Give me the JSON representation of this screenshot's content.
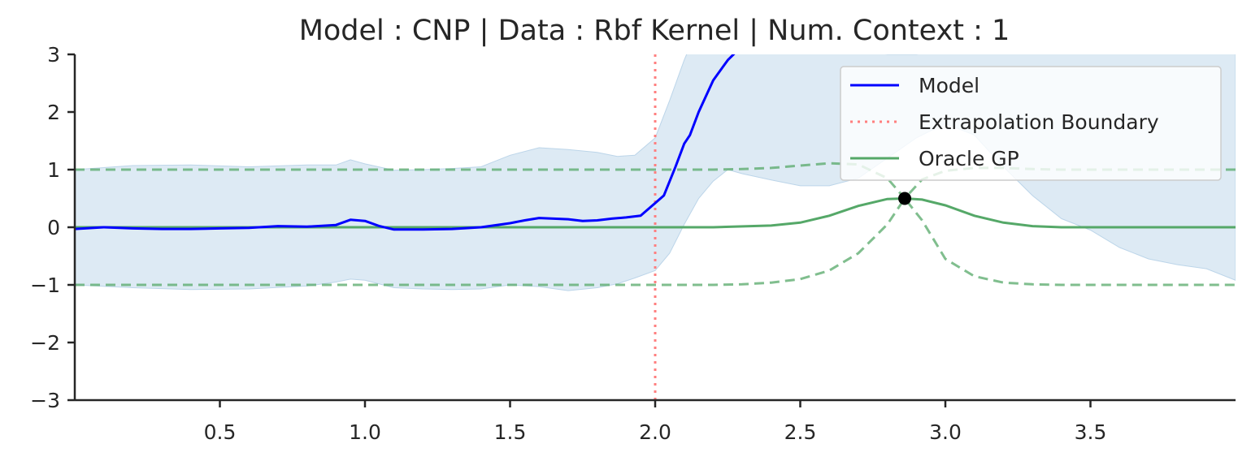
{
  "chart_data": {
    "type": "line",
    "title": "Model : CNP | Data : Rbf Kernel | Num. Context : 1",
    "xlabel": "",
    "ylabel": "",
    "xlim": [
      0.0,
      4.0
    ],
    "ylim": [
      -3,
      3
    ],
    "x_ticks": [
      0.5,
      1.0,
      1.5,
      2.0,
      2.5,
      3.0,
      3.5
    ],
    "x_tick_labels": [
      "0.5",
      "1.0",
      "1.5",
      "2.0",
      "2.5",
      "3.0",
      "3.5"
    ],
    "y_ticks": [
      3,
      2,
      1,
      0,
      -1,
      -2,
      -3
    ],
    "y_tick_labels": [
      "3",
      "2",
      "1",
      "0",
      "−1",
      "−2",
      "−3"
    ],
    "grid": false,
    "legend_position": "top-right",
    "extrapolation_boundary_x": 2.0,
    "context_points": [
      {
        "x": 2.86,
        "y": 0.5
      }
    ],
    "series": [
      {
        "name": "Model",
        "color": "#0000ff",
        "style": "solid",
        "x": [
          0.0,
          0.1,
          0.2,
          0.3,
          0.4,
          0.5,
          0.6,
          0.7,
          0.8,
          0.9,
          0.95,
          1.0,
          1.05,
          1.1,
          1.2,
          1.3,
          1.4,
          1.5,
          1.55,
          1.6,
          1.7,
          1.75,
          1.8,
          1.85,
          1.9,
          1.95,
          2.0,
          2.03,
          2.07,
          2.1,
          2.12,
          2.15,
          2.2,
          2.25,
          2.3
        ],
        "y": [
          -0.03,
          0.0,
          -0.02,
          -0.03,
          -0.03,
          -0.02,
          -0.01,
          0.02,
          0.01,
          0.04,
          0.13,
          0.11,
          0.02,
          -0.04,
          -0.04,
          -0.03,
          0.0,
          0.07,
          0.12,
          0.16,
          0.14,
          0.11,
          0.12,
          0.15,
          0.17,
          0.2,
          0.42,
          0.55,
          1.05,
          1.45,
          1.6,
          2.0,
          2.55,
          2.9,
          3.15
        ]
      },
      {
        "name": "Model uncertainty band",
        "color": "#bcd5e9",
        "style": "band",
        "x": [
          0.0,
          0.2,
          0.4,
          0.6,
          0.8,
          0.9,
          0.95,
          1.0,
          1.1,
          1.2,
          1.3,
          1.4,
          1.5,
          1.6,
          1.7,
          1.8,
          1.87,
          1.93,
          2.0,
          2.05,
          2.1,
          2.15,
          2.2,
          2.25,
          2.3,
          2.4,
          2.5,
          2.6,
          2.7,
          2.8,
          2.9,
          3.0,
          3.1,
          3.2,
          3.3,
          3.4,
          3.5,
          3.6,
          3.7,
          3.8,
          3.9,
          4.0
        ],
        "upper": [
          1.0,
          1.07,
          1.08,
          1.05,
          1.08,
          1.08,
          1.17,
          1.1,
          0.99,
          1.0,
          1.02,
          1.05,
          1.25,
          1.38,
          1.35,
          1.3,
          1.23,
          1.25,
          1.55,
          2.2,
          2.9,
          3.5,
          4.0,
          4.2,
          4.2,
          4.0,
          3.6,
          3.3,
          3.1,
          3.0,
          3.0,
          3.1,
          3.2,
          3.4,
          3.6,
          3.8,
          4.0,
          4.2,
          4.4,
          4.5,
          4.6,
          4.7
        ],
        "lower": [
          -1.0,
          -1.05,
          -1.08,
          -1.07,
          -1.02,
          -0.95,
          -0.9,
          -0.92,
          -1.05,
          -1.07,
          -1.08,
          -1.07,
          -1.0,
          -1.03,
          -1.1,
          -1.05,
          -0.98,
          -0.88,
          -0.75,
          -0.45,
          0.05,
          0.5,
          0.8,
          1.0,
          0.93,
          0.82,
          0.72,
          0.72,
          0.85,
          1.2,
          1.55,
          1.8,
          1.6,
          1.05,
          0.55,
          0.15,
          -0.05,
          -0.35,
          -0.55,
          -0.65,
          -0.72,
          -0.92
        ]
      },
      {
        "name": "Extrapolation Boundary",
        "color": "#ff7f7f",
        "style": "dotted"
      },
      {
        "name": "Oracle GP",
        "color": "#55a868",
        "style": "solid",
        "x": [
          0.0,
          2.0,
          2.2,
          2.4,
          2.5,
          2.6,
          2.7,
          2.8,
          2.86,
          2.92,
          3.0,
          3.1,
          3.2,
          3.3,
          3.4,
          3.5,
          3.7,
          4.0
        ],
        "y": [
          0.0,
          0.0,
          0.0,
          0.03,
          0.08,
          0.2,
          0.37,
          0.49,
          0.5,
          0.48,
          0.38,
          0.2,
          0.08,
          0.02,
          0.0,
          0.0,
          0.0,
          0.0
        ]
      },
      {
        "name": "Oracle GP upper",
        "color": "#55a868",
        "style": "dashed",
        "x": [
          0.0,
          2.0,
          2.2,
          2.3,
          2.4,
          2.5,
          2.6,
          2.7,
          2.8,
          2.86,
          2.92,
          3.0,
          3.1,
          3.2,
          3.3,
          3.4,
          3.5,
          4.0
        ],
        "y": [
          1.0,
          1.0,
          1.0,
          1.01,
          1.03,
          1.07,
          1.11,
          1.09,
          0.85,
          0.5,
          0.83,
          0.98,
          1.03,
          1.03,
          1.01,
          1.0,
          1.0,
          1.0
        ]
      },
      {
        "name": "Oracle GP lower",
        "color": "#55a868",
        "style": "dashed",
        "x": [
          0.0,
          2.0,
          2.2,
          2.3,
          2.4,
          2.5,
          2.6,
          2.7,
          2.8,
          2.86,
          2.92,
          3.0,
          3.1,
          3.2,
          3.3,
          3.4,
          3.5,
          4.0
        ],
        "y": [
          -1.0,
          -1.0,
          -1.0,
          -0.99,
          -0.96,
          -0.9,
          -0.75,
          -0.45,
          0.05,
          0.5,
          0.12,
          -0.55,
          -0.85,
          -0.96,
          -0.99,
          -1.0,
          -1.0,
          -1.0
        ]
      }
    ]
  }
}
